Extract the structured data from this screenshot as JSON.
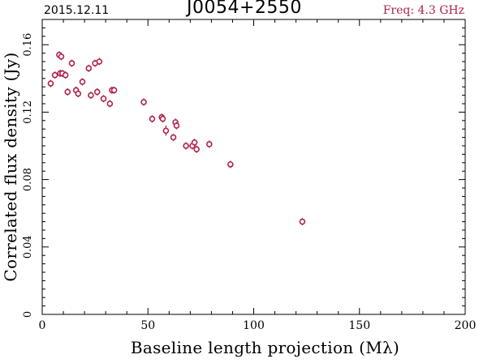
{
  "header": {
    "date": "2015.12.11",
    "source": "J0054+2550",
    "freq": "Freq: 4.3 GHz"
  },
  "colors": {
    "point": "#b0224a",
    "freq_text": "#b0224a",
    "axis": "#000000"
  },
  "chart_data": {
    "type": "scatter",
    "xlabel": "Baseline length projection (Mλ)",
    "ylabel": "Correlated flux density (Jy)",
    "xlim": [
      0,
      200
    ],
    "ylim": [
      0,
      0.175
    ],
    "x_ticks": [
      0,
      50,
      100,
      150,
      200
    ],
    "x_tick_labels": [
      "0",
      "50",
      "100",
      "150",
      "200"
    ],
    "y_ticks": [
      0,
      0.04,
      0.08,
      0.12,
      0.16
    ],
    "y_tick_labels": [
      "0",
      "0.04",
      "0.08",
      "0.12",
      "0.16"
    ],
    "grid": false,
    "series": [
      {
        "x": [
          4,
          6,
          8,
          8.5,
          9,
          9.5,
          11,
          12,
          14,
          16,
          17,
          19,
          22,
          23,
          25,
          26,
          27,
          29,
          32,
          33,
          34,
          48,
          52,
          56.5,
          57,
          58.5,
          62,
          63,
          63.5,
          68,
          71,
          72,
          73,
          79,
          89,
          123
        ],
        "y": [
          0.137,
          0.142,
          0.154,
          0.143,
          0.153,
          0.143,
          0.142,
          0.132,
          0.149,
          0.133,
          0.131,
          0.138,
          0.146,
          0.13,
          0.149,
          0.132,
          0.15,
          0.128,
          0.125,
          0.133,
          0.133,
          0.126,
          0.116,
          0.117,
          0.116,
          0.109,
          0.105,
          0.114,
          0.112,
          0.1,
          0.1,
          0.102,
          0.098,
          0.101,
          0.089,
          0.055
        ],
        "yerr": [
          0.001,
          0.001,
          0.001,
          0.001,
          0.001,
          0.001,
          0.001,
          0.001,
          0.001,
          0.002,
          0.002,
          0.001,
          0.001,
          0.001,
          0.001,
          0.001,
          0.001,
          0.001,
          0.001,
          0.001,
          0.001,
          0.002,
          0.001,
          0.002,
          0.002,
          0.003,
          0.002,
          0.002,
          0.002,
          0.002,
          0.002,
          0.002,
          0.002,
          0.002,
          0.001,
          0.001
        ]
      }
    ]
  }
}
